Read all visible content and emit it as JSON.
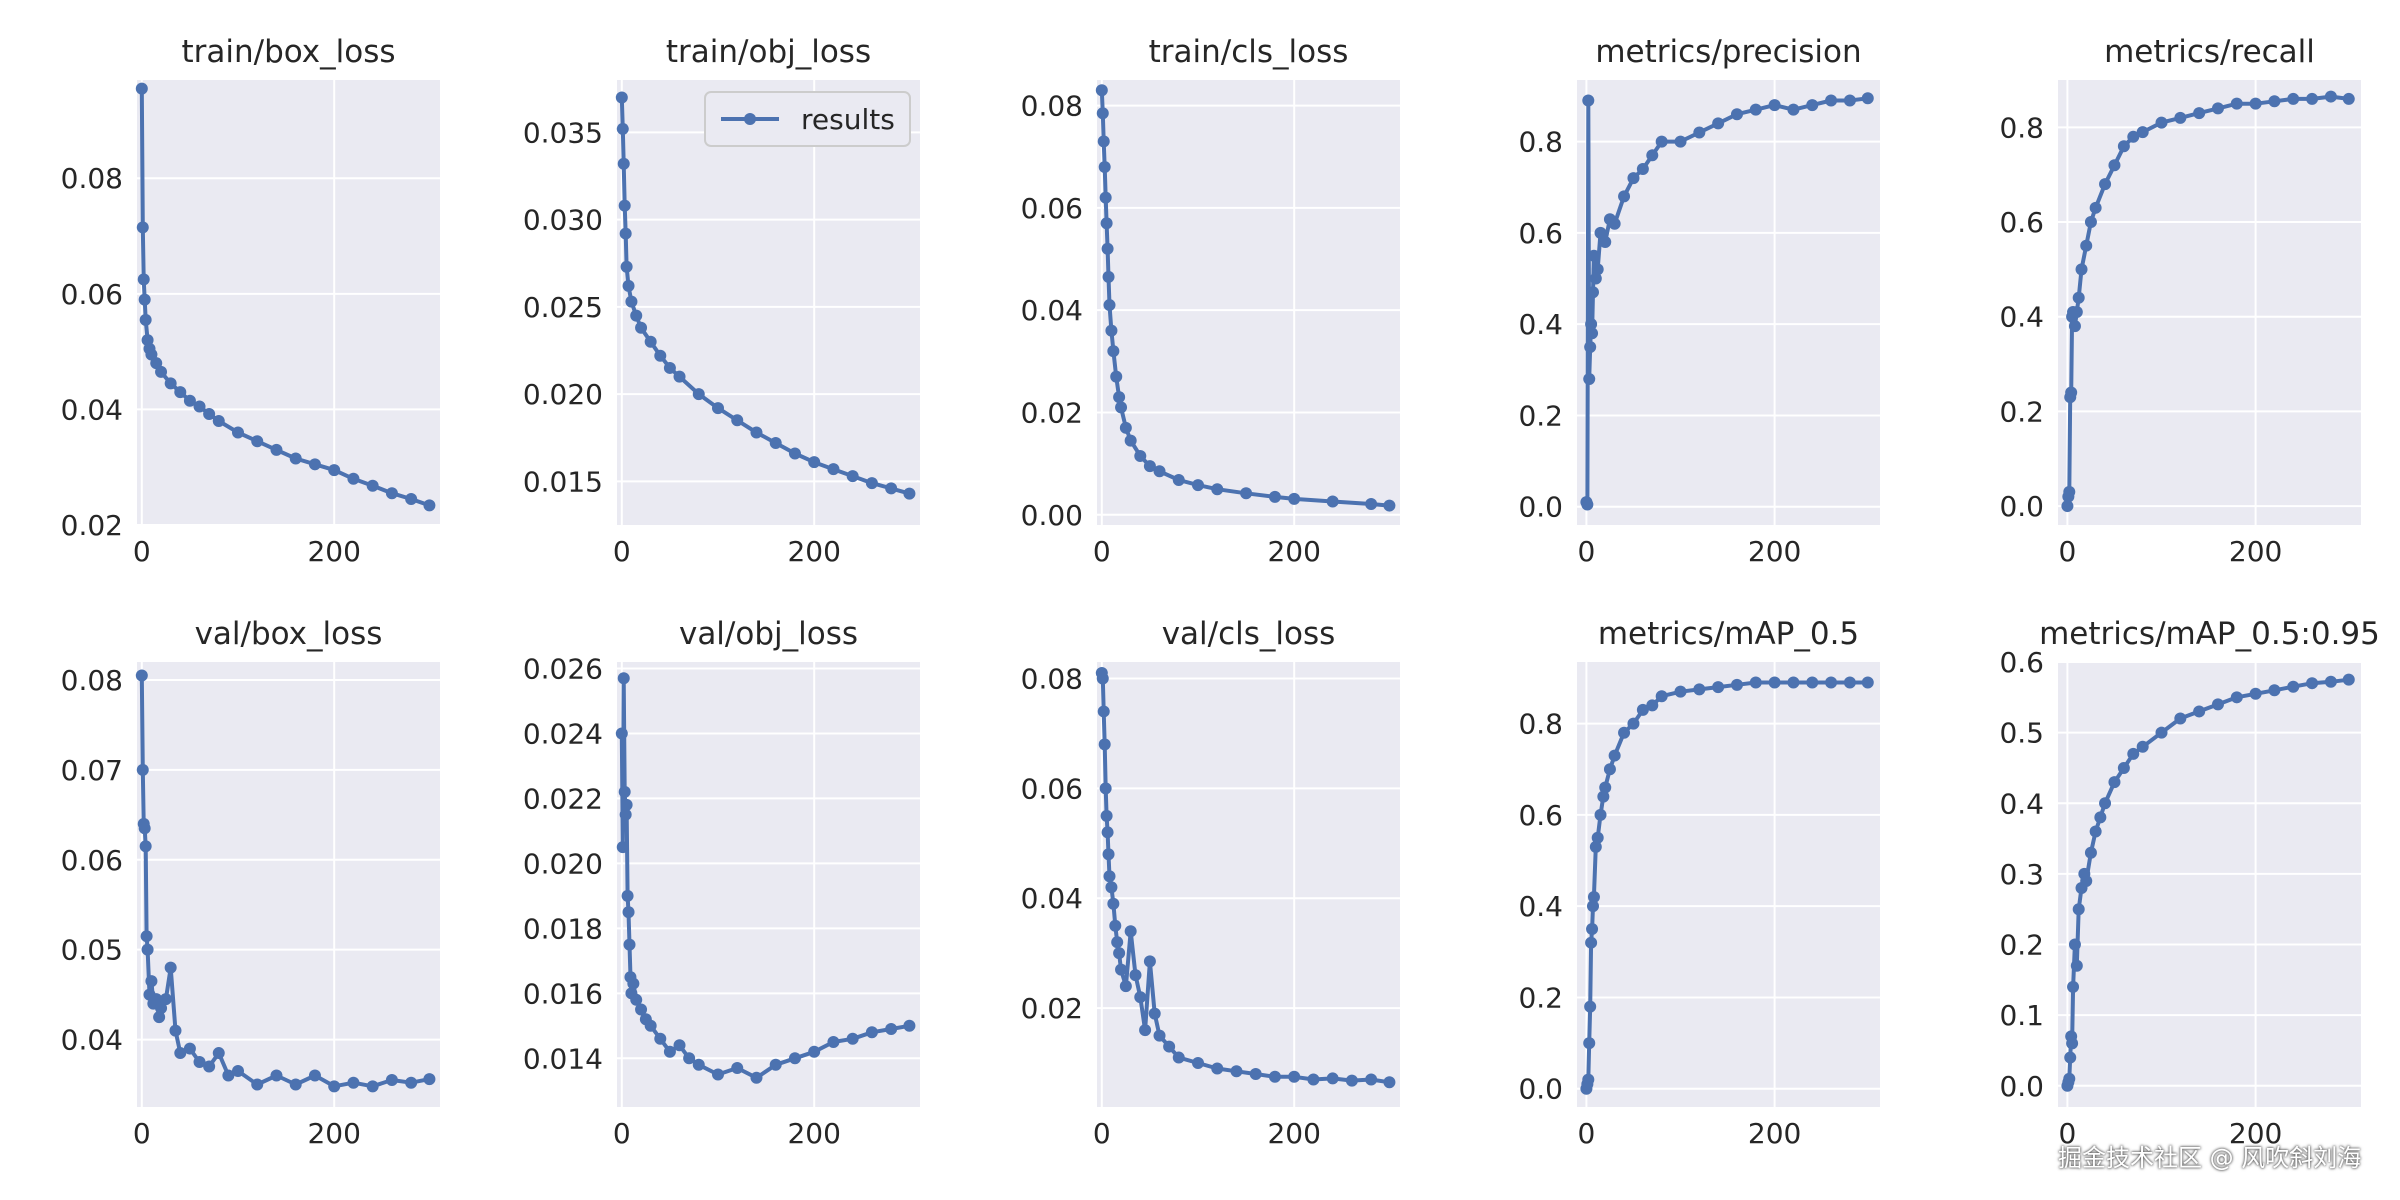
{
  "colors": {
    "line": "#4c72b0",
    "axes_bg": "#eaeaf2",
    "grid": "#ffffff",
    "text": "#262626"
  },
  "watermark": "掘金技术社区 @ 风吹斜刘海",
  "legend": {
    "label": "results",
    "placement": "upper right (train/obj_loss panel)"
  },
  "chart_data": [
    {
      "type": "line",
      "title": "train/box_loss",
      "xlim": [
        -5,
        310
      ],
      "ylim": [
        0.02,
        0.097
      ],
      "xticks": [
        0,
        200
      ],
      "yticks": [
        0.02,
        0.04,
        0.06,
        0.08
      ],
      "x": [
        0,
        1,
        2,
        3,
        4,
        6,
        8,
        10,
        15,
        20,
        30,
        40,
        50,
        60,
        70,
        80,
        100,
        120,
        140,
        160,
        180,
        200,
        220,
        240,
        260,
        280,
        299
      ],
      "series": [
        {
          "name": "results",
          "values": [
            0.0955,
            0.0715,
            0.0625,
            0.059,
            0.0555,
            0.052,
            0.0505,
            0.0495,
            0.048,
            0.0465,
            0.0445,
            0.043,
            0.0415,
            0.0405,
            0.0392,
            0.038,
            0.036,
            0.0345,
            0.033,
            0.0315,
            0.0305,
            0.0295,
            0.028,
            0.0268,
            0.0255,
            0.0245,
            0.0234
          ]
        }
      ]
    },
    {
      "type": "line",
      "title": "train/obj_loss",
      "xlim": [
        -5,
        310
      ],
      "ylim": [
        0.0125,
        0.038
      ],
      "xticks": [
        0,
        200
      ],
      "yticks": [
        0.015,
        0.02,
        0.025,
        0.03,
        0.035
      ],
      "x": [
        0,
        1,
        2,
        3,
        4,
        5,
        7,
        10,
        15,
        20,
        30,
        40,
        50,
        60,
        80,
        100,
        120,
        140,
        160,
        180,
        200,
        220,
        240,
        260,
        280,
        299
      ],
      "series": [
        {
          "name": "results",
          "values": [
            0.037,
            0.0352,
            0.0332,
            0.0308,
            0.0292,
            0.0273,
            0.0262,
            0.0253,
            0.0245,
            0.0238,
            0.023,
            0.0222,
            0.0215,
            0.021,
            0.02,
            0.0192,
            0.0185,
            0.0178,
            0.0172,
            0.0166,
            0.0161,
            0.0157,
            0.0153,
            0.0149,
            0.0146,
            0.0143
          ]
        }
      ]
    },
    {
      "type": "line",
      "title": "train/cls_loss",
      "xlim": [
        -5,
        310
      ],
      "ylim": [
        -0.002,
        0.085
      ],
      "xticks": [
        0,
        200
      ],
      "yticks": [
        0.0,
        0.02,
        0.04,
        0.06,
        0.08
      ],
      "x": [
        0,
        1,
        2,
        3,
        4,
        5,
        6,
        7,
        8,
        10,
        12,
        15,
        18,
        20,
        25,
        30,
        40,
        50,
        60,
        80,
        100,
        120,
        150,
        180,
        200,
        240,
        280,
        299
      ],
      "series": [
        {
          "name": "results",
          "values": [
            0.083,
            0.0785,
            0.073,
            0.068,
            0.062,
            0.057,
            0.052,
            0.0465,
            0.041,
            0.036,
            0.032,
            0.027,
            0.023,
            0.021,
            0.017,
            0.0145,
            0.0115,
            0.0095,
            0.0085,
            0.0068,
            0.0058,
            0.005,
            0.0042,
            0.0035,
            0.0031,
            0.0026,
            0.0021,
            0.0018
          ]
        }
      ]
    },
    {
      "type": "line",
      "title": "metrics/precision",
      "xlim": [
        -10,
        312
      ],
      "ylim": [
        -0.04,
        0.935
      ],
      "xticks": [
        0,
        200
      ],
      "yticks": [
        0.0,
        0.2,
        0.4,
        0.6,
        0.8
      ],
      "x": [
        0,
        1,
        2,
        3,
        4,
        5,
        6,
        7,
        8,
        10,
        12,
        15,
        20,
        25,
        30,
        40,
        50,
        60,
        70,
        80,
        100,
        120,
        140,
        160,
        180,
        200,
        220,
        240,
        260,
        280,
        299
      ],
      "series": [
        {
          "name": "results",
          "values": [
            0.01,
            0.005,
            0.89,
            0.28,
            0.35,
            0.4,
            0.38,
            0.47,
            0.55,
            0.5,
            0.52,
            0.6,
            0.58,
            0.63,
            0.62,
            0.68,
            0.72,
            0.74,
            0.77,
            0.8,
            0.8,
            0.82,
            0.84,
            0.86,
            0.87,
            0.88,
            0.87,
            0.88,
            0.89,
            0.89,
            0.895
          ]
        }
      ]
    },
    {
      "type": "line",
      "title": "metrics/recall",
      "xlim": [
        -10,
        312
      ],
      "ylim": [
        -0.04,
        0.9
      ],
      "xticks": [
        0,
        200
      ],
      "yticks": [
        0.0,
        0.2,
        0.4,
        0.6,
        0.8
      ],
      "x": [
        0,
        1,
        2,
        3,
        4,
        5,
        6,
        8,
        10,
        12,
        15,
        20,
        25,
        30,
        40,
        50,
        60,
        70,
        80,
        100,
        120,
        140,
        160,
        180,
        200,
        220,
        240,
        260,
        280,
        299
      ],
      "series": [
        {
          "name": "results",
          "values": [
            0.0,
            0.02,
            0.03,
            0.23,
            0.24,
            0.4,
            0.41,
            0.38,
            0.41,
            0.44,
            0.5,
            0.55,
            0.6,
            0.63,
            0.68,
            0.72,
            0.76,
            0.78,
            0.79,
            0.81,
            0.82,
            0.83,
            0.84,
            0.85,
            0.85,
            0.855,
            0.86,
            0.86,
            0.865,
            0.86
          ]
        }
      ]
    },
    {
      "type": "line",
      "title": "val/box_loss",
      "xlim": [
        -5,
        310
      ],
      "ylim": [
        0.0325,
        0.082
      ],
      "xticks": [
        0,
        200
      ],
      "yticks": [
        0.04,
        0.05,
        0.06,
        0.07,
        0.08
      ],
      "x": [
        0,
        1,
        2,
        3,
        4,
        5,
        6,
        8,
        10,
        12,
        15,
        18,
        20,
        25,
        30,
        35,
        40,
        50,
        60,
        70,
        80,
        90,
        100,
        120,
        140,
        160,
        180,
        200,
        220,
        240,
        260,
        280,
        299
      ],
      "series": [
        {
          "name": "results",
          "values": [
            0.0805,
            0.07,
            0.064,
            0.0635,
            0.0615,
            0.0515,
            0.05,
            0.045,
            0.0465,
            0.044,
            0.0445,
            0.0425,
            0.0435,
            0.0445,
            0.048,
            0.041,
            0.0385,
            0.039,
            0.0375,
            0.037,
            0.0385,
            0.036,
            0.0365,
            0.035,
            0.036,
            0.035,
            0.036,
            0.0348,
            0.0352,
            0.0348,
            0.0355,
            0.0352,
            0.0356
          ]
        }
      ]
    },
    {
      "type": "line",
      "title": "val/obj_loss",
      "xlim": [
        -5,
        310
      ],
      "ylim": [
        0.0125,
        0.0262
      ],
      "xticks": [
        0,
        200
      ],
      "yticks": [
        0.014,
        0.016,
        0.018,
        0.02,
        0.022,
        0.024,
        0.026
      ],
      "x": [
        0,
        1,
        2,
        3,
        4,
        5,
        6,
        7,
        8,
        9,
        10,
        12,
        15,
        20,
        25,
        30,
        40,
        50,
        60,
        70,
        80,
        100,
        120,
        140,
        160,
        180,
        200,
        220,
        240,
        260,
        280,
        299
      ],
      "series": [
        {
          "name": "results",
          "values": [
            0.024,
            0.0205,
            0.0257,
            0.0222,
            0.0215,
            0.0218,
            0.019,
            0.0185,
            0.0175,
            0.0165,
            0.016,
            0.0163,
            0.0158,
            0.0155,
            0.0152,
            0.015,
            0.0146,
            0.0142,
            0.0144,
            0.014,
            0.0138,
            0.0135,
            0.0137,
            0.0134,
            0.0138,
            0.014,
            0.0142,
            0.0145,
            0.0146,
            0.0148,
            0.0149,
            0.015
          ]
        }
      ]
    },
    {
      "type": "line",
      "title": "val/cls_loss",
      "xlim": [
        -5,
        310
      ],
      "ylim": [
        0.002,
        0.083
      ],
      "xticks": [
        0,
        200
      ],
      "yticks": [
        0.02,
        0.04,
        0.06,
        0.08
      ],
      "x": [
        0,
        1,
        2,
        3,
        4,
        5,
        6,
        7,
        8,
        10,
        12,
        14,
        16,
        18,
        20,
        25,
        30,
        35,
        40,
        45,
        50,
        55,
        60,
        70,
        80,
        100,
        120,
        140,
        160,
        180,
        200,
        220,
        240,
        260,
        280,
        299
      ],
      "series": [
        {
          "name": "results",
          "values": [
            0.081,
            0.08,
            0.074,
            0.068,
            0.06,
            0.055,
            0.052,
            0.048,
            0.044,
            0.042,
            0.039,
            0.035,
            0.032,
            0.03,
            0.027,
            0.024,
            0.034,
            0.026,
            0.022,
            0.016,
            0.0285,
            0.019,
            0.015,
            0.013,
            0.011,
            0.01,
            0.009,
            0.0085,
            0.008,
            0.0075,
            0.0075,
            0.007,
            0.0072,
            0.0068,
            0.007,
            0.0065
          ]
        }
      ]
    },
    {
      "type": "line",
      "title": "metrics/mAP_0.5",
      "xlim": [
        -10,
        312
      ],
      "ylim": [
        -0.04,
        0.935
      ],
      "xticks": [
        0,
        200
      ],
      "yticks": [
        0.0,
        0.2,
        0.4,
        0.6,
        0.8
      ],
      "x": [
        0,
        1,
        2,
        3,
        4,
        5,
        6,
        7,
        8,
        10,
        12,
        15,
        18,
        20,
        25,
        30,
        40,
        50,
        60,
        70,
        80,
        100,
        120,
        140,
        160,
        180,
        200,
        220,
        240,
        260,
        280,
        299
      ],
      "series": [
        {
          "name": "results",
          "values": [
            0.0,
            0.01,
            0.02,
            0.1,
            0.18,
            0.32,
            0.35,
            0.4,
            0.42,
            0.53,
            0.55,
            0.6,
            0.64,
            0.66,
            0.7,
            0.73,
            0.78,
            0.8,
            0.83,
            0.84,
            0.86,
            0.87,
            0.875,
            0.88,
            0.885,
            0.89,
            0.89,
            0.89,
            0.89,
            0.89,
            0.89,
            0.89
          ]
        }
      ]
    },
    {
      "type": "line",
      "title": "metrics/mAP_0.5:0.95",
      "xlim": [
        -10,
        312
      ],
      "ylim": [
        -0.03,
        0.6
      ],
      "xticks": [
        0,
        200
      ],
      "yticks": [
        0.0,
        0.1,
        0.2,
        0.3,
        0.4,
        0.5,
        0.6
      ],
      "x": [
        0,
        1,
        2,
        3,
        4,
        5,
        6,
        8,
        10,
        12,
        15,
        18,
        20,
        25,
        30,
        35,
        40,
        50,
        60,
        70,
        80,
        100,
        120,
        140,
        160,
        180,
        200,
        220,
        240,
        260,
        280,
        299
      ],
      "series": [
        {
          "name": "results",
          "values": [
            0.0,
            0.005,
            0.01,
            0.04,
            0.07,
            0.06,
            0.14,
            0.2,
            0.17,
            0.25,
            0.28,
            0.3,
            0.29,
            0.33,
            0.36,
            0.38,
            0.4,
            0.43,
            0.45,
            0.47,
            0.48,
            0.5,
            0.52,
            0.53,
            0.54,
            0.55,
            0.555,
            0.56,
            0.565,
            0.57,
            0.572,
            0.575
          ]
        }
      ]
    }
  ]
}
